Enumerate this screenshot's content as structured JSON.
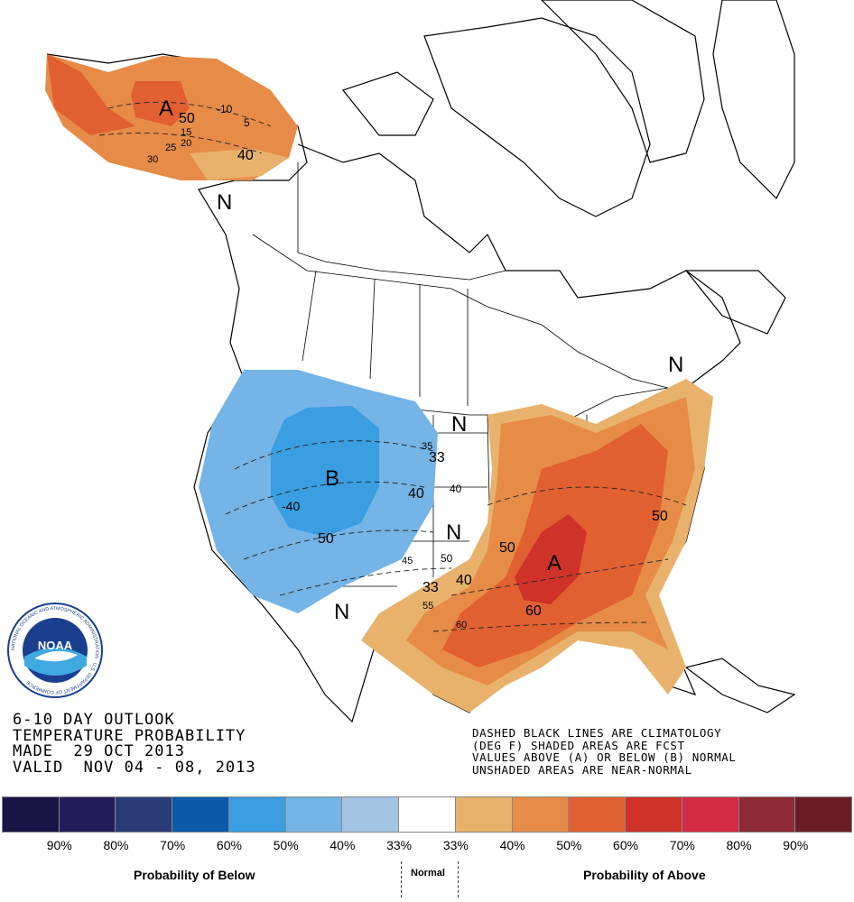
{
  "map": {
    "labels": [
      "A",
      "B",
      "A",
      "N",
      "N",
      "N",
      "N",
      "N"
    ],
    "contours": [
      "-10",
      "5",
      "50",
      "15",
      "20",
      "25",
      "30",
      "40",
      "35",
      "33",
      "40",
      "40",
      "-40",
      "50",
      "45",
      "50",
      "33",
      "55",
      "40",
      "50",
      "60",
      "60",
      "50"
    ]
  },
  "title": {
    "line1": "6-10 DAY OUTLOOK",
    "line2": "TEMPERATURE PROBABILITY",
    "line3": "MADE  29 OCT 2013",
    "line4": "VALID  NOV 04 - 08, 2013"
  },
  "note": {
    "line1": "DASHED BLACK LINES ARE CLIMATOLOGY",
    "line2": "(DEG F) SHADED AREAS ARE FCST",
    "line3": "VALUES ABOVE (A) OR BELOW (B) NORMAL",
    "line4": "UNSHADED AREAS ARE NEAR-NORMAL"
  },
  "logo": {
    "text": "NOAA",
    "ring_text": "NATIONAL OCEANIC AND ATMOSPHERIC ADMINISTRATION · U.S. DEPARTMENT OF COMMERCE"
  },
  "legend": {
    "colors": [
      "#1a1446",
      "#241c5a",
      "#2a3c78",
      "#0a5aa8",
      "#3a9ee0",
      "#74b4e6",
      "#a4c4e4",
      "#ffffff",
      "#e8b26c",
      "#e68c48",
      "#e06032",
      "#ce3228",
      "#d42c44",
      "#8c2a36",
      "#6a1e24"
    ],
    "percents": [
      "90%",
      "80%",
      "70%",
      "60%",
      "50%",
      "40%",
      "33%",
      "33%",
      "40%",
      "50%",
      "60%",
      "70%",
      "80%",
      "90%"
    ],
    "below_label": "Probability of Below",
    "normal_label": "Normal",
    "above_label": "Probability of Above"
  }
}
